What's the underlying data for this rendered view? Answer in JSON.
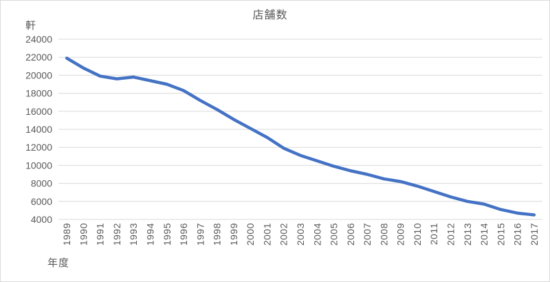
{
  "chart": {
    "title": "店舗数",
    "y_axis_unit": "軒",
    "x_axis_title": "年度",
    "colors": {
      "line": "#4472C4",
      "gridline": "#D9D9D9",
      "text": "#595959",
      "border": "#D9D9D9",
      "background": "#FFFFFF"
    }
  },
  "chart_data": {
    "type": "line",
    "title": "店舗数",
    "xlabel": "年度",
    "ylabel": "軒",
    "categories": [
      "1989",
      "1990",
      "1991",
      "1992",
      "1993",
      "1994",
      "1995",
      "1996",
      "1997",
      "1998",
      "1999",
      "2000",
      "2001",
      "2002",
      "2003",
      "2004",
      "2005",
      "2006",
      "2007",
      "2008",
      "2009",
      "2010",
      "2011",
      "2012",
      "2013",
      "2014",
      "2015",
      "2016",
      "2017"
    ],
    "series": [
      {
        "name": "店舗数",
        "values": [
          21900,
          20800,
          19900,
          19600,
          19800,
          19400,
          19000,
          18300,
          17200,
          16200,
          15100,
          14100,
          13100,
          11900,
          11100,
          10500,
          9900,
          9400,
          9000,
          8500,
          8200,
          7700,
          7100,
          6500,
          6000,
          5700,
          5100,
          4700,
          4500
        ]
      }
    ],
    "ylim": [
      4000,
      24000
    ],
    "ytick_step": 2000,
    "yticks": [
      24000,
      22000,
      20000,
      18000,
      16000,
      14000,
      12000,
      10000,
      8000,
      6000,
      4000
    ],
    "grid": true,
    "legend": false,
    "x_tick_rotation": -90,
    "line_color": "#4472C4"
  }
}
